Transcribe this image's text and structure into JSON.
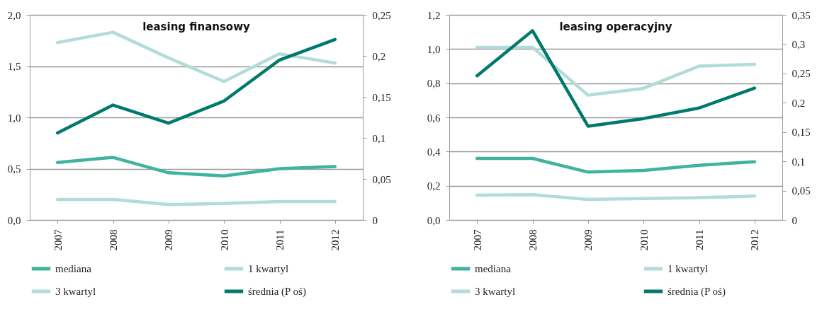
{
  "chart_data": [
    {
      "type": "line",
      "title": "leasing finansowy",
      "categories": [
        "2007",
        "2008",
        "2009",
        "2010",
        "2011",
        "2012"
      ],
      "series": [
        {
          "name": "mediana",
          "color": "#3fb3a0",
          "values": [
            0.56,
            0.61,
            0.46,
            0.43,
            0.5,
            0.52
          ]
        },
        {
          "name": "1 kwartyl",
          "color": "#b2dcd9",
          "values": [
            0.2,
            0.2,
            0.15,
            0.16,
            0.18,
            0.18
          ]
        },
        {
          "name": "3 kwartyl",
          "color": "#b2dcd9",
          "values": [
            1.73,
            1.83,
            1.58,
            1.35,
            1.62,
            1.53
          ]
        },
        {
          "name": "średnia (P oś)",
          "color": "#007a6c",
          "axis": "y2",
          "values": [
            0.106,
            0.14,
            0.118,
            0.145,
            0.195,
            0.22
          ]
        }
      ],
      "ylim": [
        0,
        2
      ],
      "yticks": [
        {
          "value": 0,
          "label": "0,0"
        },
        {
          "value": 0.5,
          "label": "0,5"
        },
        {
          "value": 1,
          "label": "1,0"
        },
        {
          "value": 1.5,
          "label": "1,5"
        },
        {
          "value": 2,
          "label": "2,0"
        }
      ],
      "y2lim": [
        0,
        0.25
      ],
      "y2ticks": [
        0,
        {
          "value": 0.05,
          "label": "0,05"
        },
        {
          "value": 0.1,
          "label": "0,1"
        },
        {
          "value": 0.15,
          "label": "0,15"
        },
        {
          "value": 0.2,
          "label": "0,2"
        },
        {
          "value": 0.25,
          "label": "0,25"
        }
      ],
      "grid": "y",
      "legend": "bottom"
    },
    {
      "type": "line",
      "title": "leasing operacyjny",
      "categories": [
        "2007",
        "2008",
        "2009",
        "2010",
        "2011",
        "2012"
      ],
      "series": [
        {
          "name": "mediana",
          "color": "#3fb3a0",
          "values": [
            0.36,
            0.36,
            0.28,
            0.29,
            0.32,
            0.34
          ]
        },
        {
          "name": "1 kwartyl",
          "color": "#b2dcd9",
          "values": [
            0.145,
            0.148,
            0.12,
            0.125,
            0.13,
            0.14
          ]
        },
        {
          "name": "3 kwartyl",
          "color": "#b2dcd9",
          "values": [
            1.01,
            1.01,
            0.73,
            0.77,
            0.9,
            0.91
          ]
        },
        {
          "name": "średnia (P oś)",
          "color": "#007a6c",
          "axis": "y2",
          "values": [
            0.246,
            0.323,
            0.16,
            0.173,
            0.191,
            0.225
          ]
        }
      ],
      "ylim": [
        0,
        1.2
      ],
      "yticks": [
        {
          "value": 0,
          "label": "0,0"
        },
        {
          "value": 0.2,
          "label": "0,2"
        },
        {
          "value": 0.4,
          "label": "0,4"
        },
        {
          "value": 0.6,
          "label": "0,6"
        },
        {
          "value": 0.8,
          "label": "0,8"
        },
        {
          "value": 1,
          "label": "1,0"
        },
        {
          "value": 1.2,
          "label": "1,2"
        }
      ],
      "y2lim": [
        0,
        0.35
      ],
      "y2ticks": [
        0,
        {
          "value": 0.05,
          "label": "0,05"
        },
        {
          "value": 0.1,
          "label": "0,1"
        },
        {
          "value": 0.15,
          "label": "0,15"
        },
        {
          "value": 0.2,
          "label": "0,2"
        },
        {
          "value": 0.25,
          "label": "0,25"
        },
        {
          "value": 0.3,
          "label": "0,3"
        },
        {
          "value": 0.35,
          "label": "0,35"
        }
      ],
      "grid": "y",
      "legend": "bottom"
    }
  ]
}
